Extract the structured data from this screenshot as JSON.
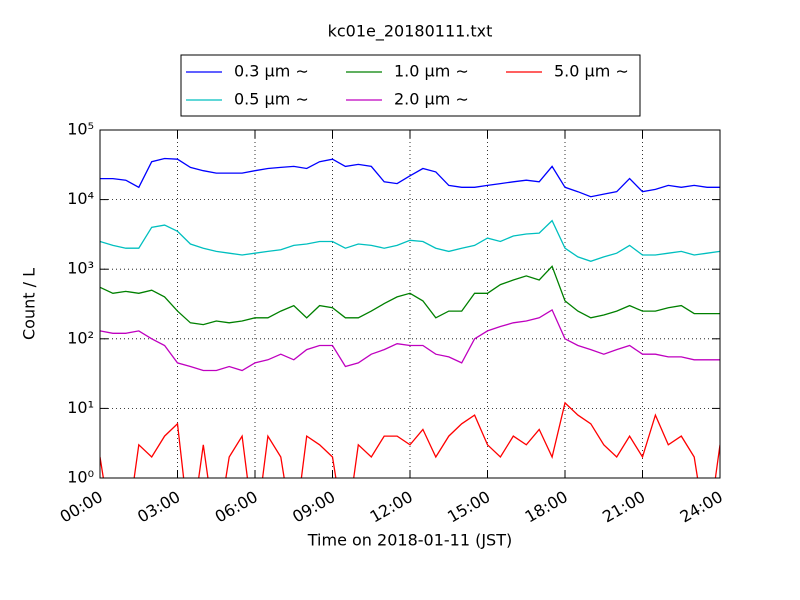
{
  "chart_data": {
    "type": "line",
    "title": "kc01e_20180111.txt",
    "xlabel": "Time on 2018-01-11 (JST)",
    "ylabel": "Count / L",
    "x": [
      0,
      0.5,
      1,
      1.5,
      2,
      2.5,
      3,
      3.5,
      4,
      4.5,
      5,
      5.5,
      6,
      6.5,
      7,
      7.5,
      8,
      8.5,
      9,
      9.5,
      10,
      10.5,
      11,
      11.5,
      12,
      12.5,
      13,
      13.5,
      14,
      14.5,
      15,
      15.5,
      16,
      16.5,
      17,
      17.5,
      18,
      18.5,
      19,
      19.5,
      20,
      20.5,
      21,
      21.5,
      22,
      22.5,
      23,
      23.5,
      24
    ],
    "xlim": [
      0,
      24
    ],
    "xticks": [
      {
        "value": 0,
        "label": "00:00"
      },
      {
        "value": 3,
        "label": "03:00"
      },
      {
        "value": 6,
        "label": "06:00"
      },
      {
        "value": 9,
        "label": "09:00"
      },
      {
        "value": 12,
        "label": "12:00"
      },
      {
        "value": 15,
        "label": "15:00"
      },
      {
        "value": 18,
        "label": "18:00"
      },
      {
        "value": 21,
        "label": "21:00"
      },
      {
        "value": 24,
        "label": "24:00"
      }
    ],
    "ylim": [
      1,
      100000
    ],
    "log_y": true,
    "grid": true,
    "yticks": [
      {
        "value": 1,
        "label": "10⁰"
      },
      {
        "value": 10,
        "label": "10¹"
      },
      {
        "value": 100,
        "label": "10²"
      },
      {
        "value": 1000,
        "label": "10³"
      },
      {
        "value": 10000,
        "label": "10⁴"
      },
      {
        "value": 100000,
        "label": "10⁵"
      }
    ],
    "legend": "top",
    "series": [
      {
        "name": "0.3 μm ∼",
        "color": "#0000ff",
        "values": [
          20000,
          20000,
          19000,
          15000,
          35000,
          39000,
          38000,
          29000,
          26000,
          24000,
          24000,
          24000,
          26000,
          28000,
          29000,
          30000,
          28000,
          35000,
          38000,
          30000,
          32000,
          30000,
          18000,
          17000,
          22000,
          28000,
          25000,
          16000,
          15000,
          15000,
          16000,
          17000,
          18000,
          19000,
          18000,
          30000,
          15000,
          13000,
          11000,
          12000,
          13000,
          20000,
          13000,
          14000,
          16000,
          15000,
          16000,
          15000,
          15000
        ]
      },
      {
        "name": "0.5 μm ∼",
        "color": "#00bfbf",
        "values": [
          2500,
          2200,
          2000,
          2000,
          4000,
          4300,
          3500,
          2300,
          2000,
          1800,
          1700,
          1600,
          1700,
          1800,
          1900,
          2200,
          2300,
          2500,
          2500,
          2000,
          2300,
          2200,
          2000,
          2200,
          2600,
          2500,
          2000,
          1800,
          2000,
          2200,
          2800,
          2500,
          3000,
          3200,
          3300,
          5000,
          2000,
          1500,
          1300,
          1500,
          1700,
          2200,
          1600,
          1600,
          1700,
          1800,
          1600,
          1700,
          1800
        ]
      },
      {
        "name": "1.0 μm ∼",
        "color": "#008000",
        "values": [
          550,
          450,
          480,
          450,
          500,
          400,
          250,
          170,
          160,
          180,
          170,
          180,
          200,
          200,
          250,
          300,
          200,
          300,
          280,
          200,
          200,
          250,
          320,
          400,
          450,
          350,
          200,
          250,
          250,
          450,
          450,
          600,
          700,
          800,
          700,
          1100,
          350,
          250,
          200,
          220,
          250,
          300,
          250,
          250,
          280,
          300,
          230,
          230,
          230
        ]
      },
      {
        "name": "2.0 μm ∼",
        "color": "#bf00bf",
        "values": [
          130,
          120,
          120,
          130,
          100,
          80,
          45,
          40,
          35,
          35,
          40,
          35,
          45,
          50,
          60,
          50,
          70,
          80,
          80,
          40,
          45,
          60,
          70,
          85,
          80,
          80,
          60,
          55,
          45,
          100,
          130,
          150,
          170,
          180,
          200,
          260,
          100,
          80,
          70,
          60,
          70,
          80,
          60,
          60,
          55,
          55,
          50,
          50,
          50
        ]
      },
      {
        "name": "5.0 μm ∼",
        "color": "#ff0000",
        "values": [
          2,
          0,
          0,
          3,
          2,
          4,
          6,
          0,
          3,
          0,
          2,
          4,
          0,
          4,
          2,
          0,
          4,
          3,
          2,
          0,
          3,
          2,
          4,
          4,
          3,
          5,
          2,
          4,
          6,
          8,
          3,
          2,
          4,
          3,
          5,
          2,
          12,
          8,
          6,
          3,
          2,
          4,
          2,
          8,
          3,
          4,
          2,
          0,
          3
        ]
      }
    ]
  }
}
